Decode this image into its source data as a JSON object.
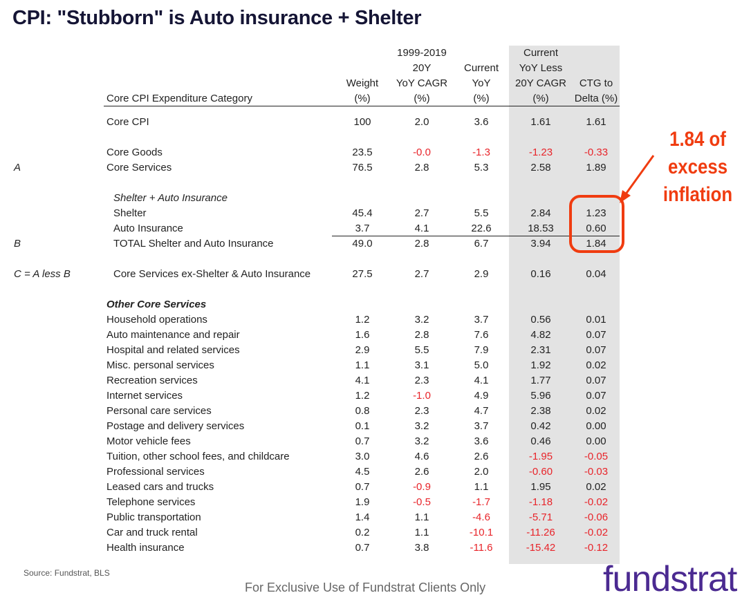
{
  "title": "CPI: \"Stubborn\" is Auto insurance + Shelter",
  "headers": {
    "category": "Core CPI Expenditure Category",
    "weight": "Weight\n(%)",
    "cagr": "1999-2019\n20Y\nYoY CAGR\n(%)",
    "current": "Current\nYoY\n(%)",
    "less": "Current\nYoY Less\n20Y CAGR\n(%)",
    "ctg": "CTG to\nDelta (%)"
  },
  "rows": [
    {
      "label": "Core CPI",
      "v": [
        "100",
        "2.0",
        "3.6",
        "1.61",
        "1.61"
      ]
    },
    {
      "spacer": true
    },
    {
      "label": "Core Goods",
      "v": [
        "23.5",
        "-0.0",
        "-1.3",
        "-1.23",
        "-0.33"
      ]
    },
    {
      "letter": "A",
      "label": "Core Services",
      "v": [
        "76.5",
        "2.8",
        "5.3",
        "2.58",
        "1.89"
      ]
    },
    {
      "spacer": true
    },
    {
      "label": "Shelter + Auto Insurance",
      "style": "ind it"
    },
    {
      "label": "Shelter",
      "style": "ind",
      "v": [
        "45.4",
        "2.7",
        "5.5",
        "2.84",
        "1.23"
      ]
    },
    {
      "label": "Auto Insurance",
      "style": "ind",
      "v": [
        "3.7",
        "4.1",
        "22.6",
        "18.53",
        "0.60"
      ]
    },
    {
      "letter": "B",
      "label": "TOTAL Shelter and Auto Insurance",
      "style": "ind",
      "v": [
        "49.0",
        "2.8",
        "6.7",
        "3.94",
        "1.84"
      ]
    },
    {
      "spacer": true
    },
    {
      "letter": "C = A less B",
      "label": "Core Services ex-Shelter & Auto Insurance",
      "style": "ind",
      "v": [
        "27.5",
        "2.7",
        "2.9",
        "0.16",
        "0.04"
      ]
    },
    {
      "spacer": true
    },
    {
      "label": "Other Core Services",
      "style": "bi"
    },
    {
      "label": "Household operations",
      "v": [
        "1.2",
        "3.2",
        "3.7",
        "0.56",
        "0.01"
      ]
    },
    {
      "label": "Auto maintenance and repair",
      "v": [
        "1.6",
        "2.8",
        "7.6",
        "4.82",
        "0.07"
      ]
    },
    {
      "label": "Hospital and related services",
      "v": [
        "2.9",
        "5.5",
        "7.9",
        "2.31",
        "0.07"
      ]
    },
    {
      "label": "Misc. personal services",
      "v": [
        "1.1",
        "3.1",
        "5.0",
        "1.92",
        "0.02"
      ]
    },
    {
      "label": "Recreation services",
      "v": [
        "4.1",
        "2.3",
        "4.1",
        "1.77",
        "0.07"
      ]
    },
    {
      "label": "Internet services",
      "v": [
        "1.2",
        "-1.0",
        "4.9",
        "5.96",
        "0.07"
      ]
    },
    {
      "label": "Personal care services",
      "v": [
        "0.8",
        "2.3",
        "4.7",
        "2.38",
        "0.02"
      ]
    },
    {
      "label": "Postage and delivery services",
      "v": [
        "0.1",
        "3.2",
        "3.7",
        "0.42",
        "0.00"
      ]
    },
    {
      "label": "Motor vehicle fees",
      "v": [
        "0.7",
        "3.2",
        "3.6",
        "0.46",
        "0.00"
      ]
    },
    {
      "label": "Tuition, other school fees, and childcare",
      "v": [
        "3.0",
        "4.6",
        "2.6",
        "-1.95",
        "-0.05"
      ]
    },
    {
      "label": "Professional services",
      "v": [
        "4.5",
        "2.6",
        "2.0",
        "-0.60",
        "-0.03"
      ]
    },
    {
      "label": "Leased cars and trucks",
      "v": [
        "0.7",
        "-0.9",
        "1.1",
        "1.95",
        "0.02"
      ]
    },
    {
      "label": "Telephone services",
      "v": [
        "1.9",
        "-0.5",
        "-1.7",
        "-1.18",
        "-0.02"
      ]
    },
    {
      "label": "Public transportation",
      "v": [
        "1.4",
        "1.1",
        "-4.6",
        "-5.71",
        "-0.06"
      ]
    },
    {
      "label": "Car and truck rental",
      "v": [
        "0.2",
        "1.1",
        "-10.1",
        "-11.26",
        "-0.02"
      ]
    },
    {
      "label": "Health insurance",
      "v": [
        "0.7",
        "3.8",
        "-11.6",
        "-15.42",
        "-0.12"
      ]
    }
  ],
  "callout": "1.84 of\nexcess\ninflation",
  "source": "Source: Fundstrat, BLS",
  "footer": "For Exclusive Use of Fundstrat Clients Only",
  "logo": "fundstrat",
  "colors": {
    "negative": "#e8242a",
    "accent": "#f03c10",
    "brand": "#4b2a91"
  }
}
